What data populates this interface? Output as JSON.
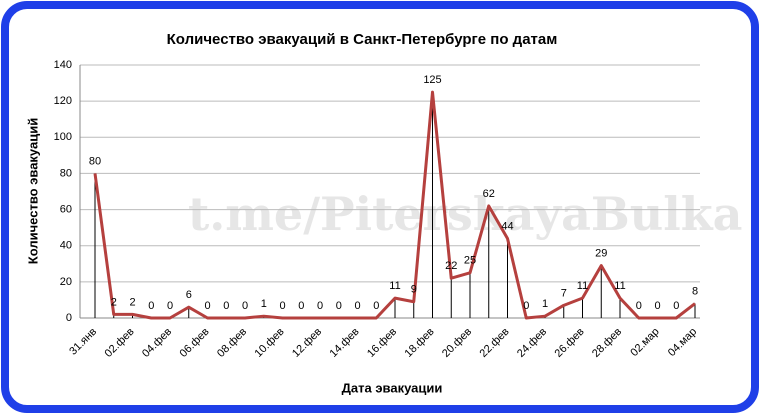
{
  "chart_data": {
    "type": "line",
    "title": "Количество эвакуаций в Санкт-Петербурге по датам",
    "watermark": "t.me/PiterskayaBulka",
    "x_label": "Дата эвакуации",
    "y_label": "Количество эвакуаций",
    "categories": [
      "31.янв",
      null,
      "02.фев",
      null,
      "04.фев",
      null,
      "06.фев",
      null,
      "08.фев",
      null,
      "10.фев",
      null,
      "12.фев",
      null,
      "14.фев",
      null,
      "16.фев",
      null,
      "18.фев",
      null,
      "20.фев",
      null,
      "22.фев",
      null,
      "24.фев",
      null,
      "26.фев",
      null,
      "28.фев",
      null,
      "02.мар",
      null,
      "04.мар"
    ],
    "series": [
      {
        "name": "Количество эвакуаций",
        "color": "#b5403e",
        "values": [
          80,
          2,
          2,
          0,
          0,
          6,
          0,
          0,
          0,
          1,
          0,
          0,
          0,
          0,
          0,
          0,
          11,
          9,
          125,
          22,
          25,
          62,
          44,
          0,
          1,
          7,
          11,
          29,
          11,
          0,
          0,
          0,
          8
        ]
      }
    ],
    "ylim": [
      0,
      140
    ],
    "yticks": [
      0,
      20,
      40,
      60,
      80,
      100,
      120,
      140
    ],
    "grid": true,
    "drop_lines": true
  }
}
